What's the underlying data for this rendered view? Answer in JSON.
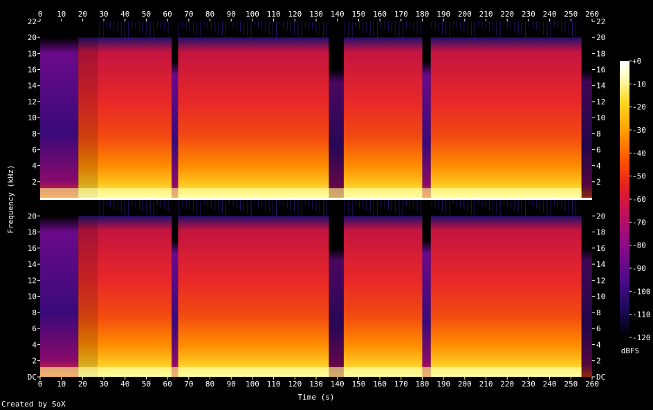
{
  "chart_data": {
    "type": "heatmap",
    "kind": "spectrogram",
    "channels": 2,
    "xlabel": "Time (s)",
    "ylabel": "Frequency (kHz)",
    "xlim": [
      0,
      260
    ],
    "ylim": [
      0,
      22
    ],
    "x_ticks": [
      "0",
      "10",
      "20",
      "30",
      "40",
      "50",
      "60",
      "70",
      "80",
      "90",
      "100",
      "110",
      "120",
      "130",
      "140",
      "150",
      "160",
      "170",
      "180",
      "190",
      "200",
      "210",
      "220",
      "230",
      "240",
      "250",
      "260"
    ],
    "y_ticks_top": [
      "22",
      "20",
      "18",
      "16",
      "14",
      "12",
      "10",
      "8",
      "6",
      "4",
      "2"
    ],
    "y_ticks_bottom": [
      "20",
      "18",
      "16",
      "14",
      "12",
      "10",
      "8",
      "6",
      "4",
      "2",
      "DC"
    ],
    "colorbar": {
      "label": "dBFS",
      "ticks": [
        "+0",
        "-10",
        "-20",
        "-30",
        "-40",
        "-50",
        "-60",
        "-70",
        "-80",
        "-90",
        "-100",
        "-110",
        "-120"
      ],
      "range": [
        -120,
        0
      ],
      "colors": [
        "#000000",
        "#1a0a55",
        "#4a0a8a",
        "#8a0a8a",
        "#c0105a",
        "#e82020",
        "#ff5a00",
        "#ffa000",
        "#ffd820",
        "#ffffc8",
        "#ffffff"
      ]
    },
    "segments": [
      {
        "start": 0,
        "end": 18,
        "level": "quiet intro with high-frequency content to 20 kHz"
      },
      {
        "start": 18,
        "end": 27,
        "level": "medium"
      },
      {
        "start": 27,
        "end": 62,
        "level": "loud"
      },
      {
        "start": 62,
        "end": 65,
        "level": "dip"
      },
      {
        "start": 65,
        "end": 136,
        "level": "loud"
      },
      {
        "start": 136,
        "end": 143,
        "level": "gap"
      },
      {
        "start": 143,
        "end": 180,
        "level": "loud"
      },
      {
        "start": 180,
        "end": 184,
        "level": "dip"
      },
      {
        "start": 184,
        "end": 255,
        "level": "loud"
      },
      {
        "start": 255,
        "end": 260,
        "level": "fade out"
      }
    ]
  },
  "footer": {
    "credit": "Created by SoX"
  }
}
